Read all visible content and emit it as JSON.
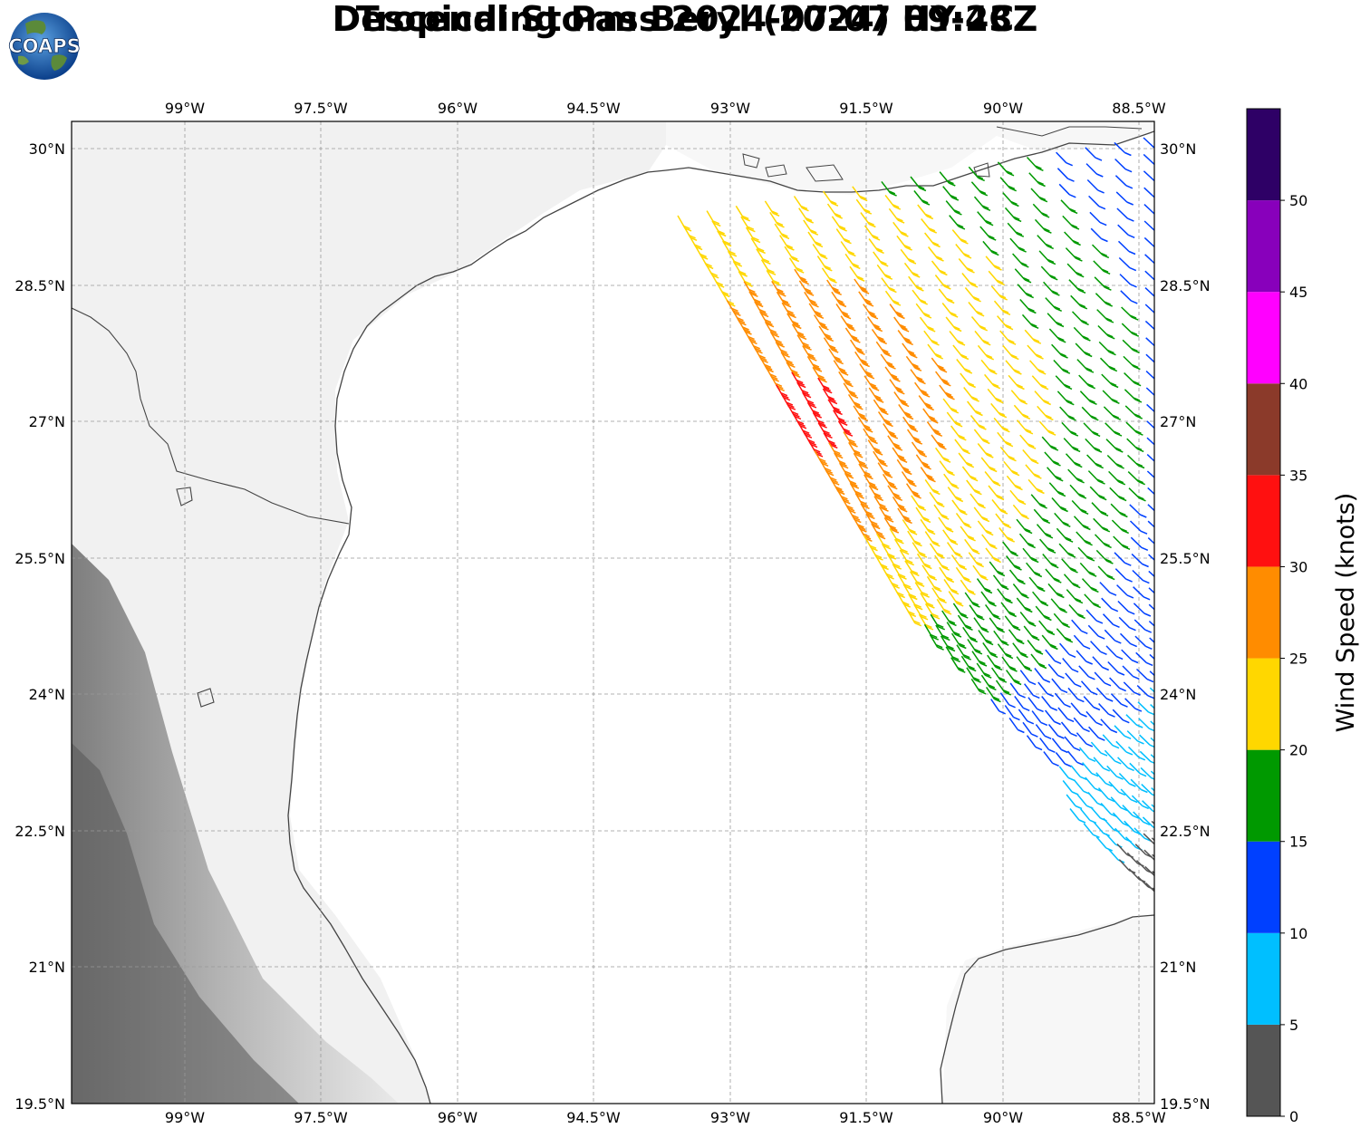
{
  "title": {
    "line1": "Tropical Storm Beryl (2024) HY-2C",
    "line2": "Descending Pass 2024-07-07 09:43Z"
  },
  "logo": {
    "text": "COAPS",
    "icon": "globe-logo-icon"
  },
  "lon_labels": [
    "99°W",
    "97.5°W",
    "96°W",
    "94.5°W",
    "93°W",
    "91.5°W",
    "90°W",
    "88.5°W"
  ],
  "lat_labels": [
    "30°N",
    "28.5°N",
    "27°N",
    "25.5°N",
    "24°N",
    "22.5°N",
    "21°N",
    "19.5°N"
  ],
  "colorbar": {
    "label": "Wind Speed (knots)",
    "ticks": [
      "0",
      "5",
      "10",
      "15",
      "20",
      "25",
      "30",
      "35",
      "40",
      "45",
      "50"
    ],
    "colors": [
      "#555555",
      "#00bfff",
      "#0040ff",
      "#009900",
      "#ffd700",
      "#ff8c00",
      "#ff1010",
      "#8b3a2a",
      "#ff00ff",
      "#8800bb",
      "#2e0066"
    ]
  },
  "map": {
    "lon_range": [
      -100.25,
      -88.35
    ],
    "lat_range": [
      19.5,
      30.3
    ],
    "storm_center_approx": {
      "lat": 27.2,
      "lon": -92.3
    }
  }
}
